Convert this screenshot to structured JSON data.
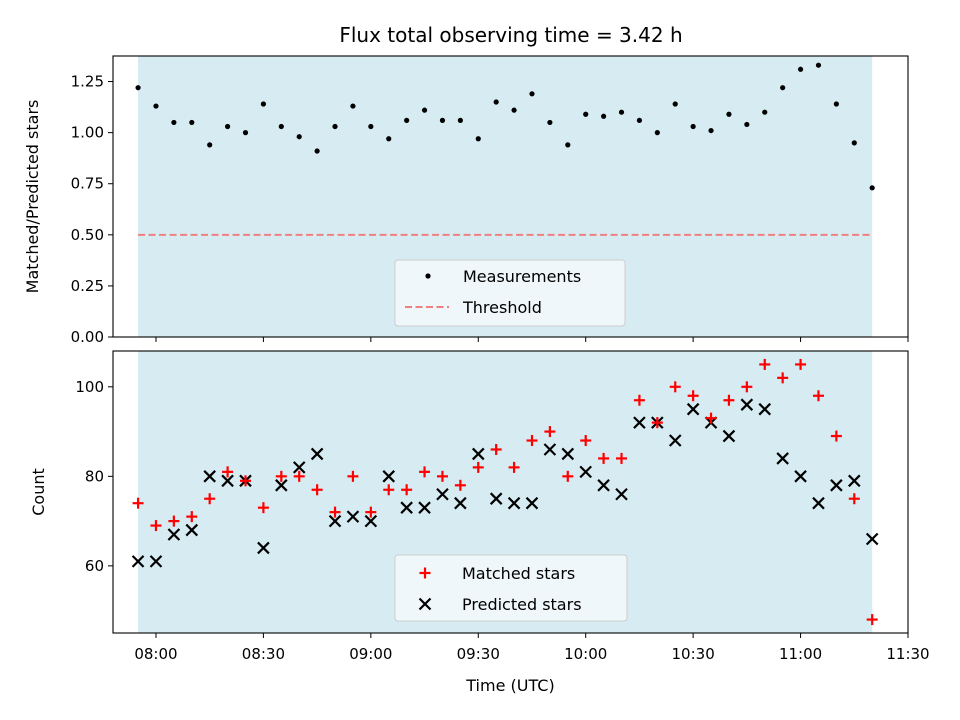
{
  "chart_data": [
    {
      "type": "scatter",
      "title": "Flux total observing time = 3.42 h",
      "xlabel": "",
      "ylabel": "Matched/Predicted stars",
      "ylim": [
        0,
        1.375
      ],
      "xlim": [
        "07:48",
        "11:30"
      ],
      "yticks": [
        "0.00",
        "0.25",
        "0.50",
        "0.75",
        "1.00",
        "1.25"
      ],
      "observing_window": [
        "07:55",
        "11:20"
      ],
      "observing_window_color": "#add8e6",
      "legend": {
        "placement": "lower center",
        "entries": [
          "Measurements",
          "Threshold"
        ]
      },
      "threshold": 0.5,
      "threshold_color": "#f08080",
      "marker_color": "#000000",
      "series": [
        {
          "name": "Measurements",
          "x": [
            "07:55",
            "08:00",
            "08:05",
            "08:10",
            "08:15",
            "08:20",
            "08:25",
            "08:30",
            "08:35",
            "08:40",
            "08:45",
            "08:50",
            "08:55",
            "09:00",
            "09:05",
            "09:10",
            "09:15",
            "09:20",
            "09:25",
            "09:30",
            "09:35",
            "09:40",
            "09:45",
            "09:50",
            "09:55",
            "10:00",
            "10:05",
            "10:10",
            "10:15",
            "10:20",
            "10:25",
            "10:30",
            "10:35",
            "10:40",
            "10:45",
            "10:50",
            "10:55",
            "11:00",
            "11:05",
            "11:10",
            "11:15",
            "11:20"
          ],
          "y": [
            1.22,
            1.13,
            1.05,
            1.05,
            0.94,
            1.03,
            1.0,
            1.14,
            1.03,
            0.98,
            0.91,
            1.03,
            1.13,
            1.03,
            0.97,
            1.06,
            1.11,
            1.06,
            1.06,
            0.97,
            1.15,
            1.11,
            1.19,
            1.05,
            0.94,
            1.09,
            1.08,
            1.1,
            1.06,
            1.0,
            1.14,
            1.03,
            1.01,
            1.09,
            1.04,
            1.1,
            1.22,
            1.31,
            1.33,
            1.14,
            0.95,
            0.73
          ]
        }
      ]
    },
    {
      "type": "scatter",
      "title": "",
      "xlabel": "Time (UTC)",
      "ylabel": "Count",
      "ylim": [
        45,
        108
      ],
      "xlim": [
        "07:48",
        "11:30"
      ],
      "xticks": [
        "08:00",
        "08:30",
        "09:00",
        "09:30",
        "10:00",
        "10:30",
        "11:00",
        "11:30"
      ],
      "yticks": [
        "60",
        "80",
        "100"
      ],
      "observing_window": [
        "07:55",
        "11:20"
      ],
      "legend": {
        "placement": "lower center",
        "entries": [
          "Matched stars",
          "Predicted stars"
        ]
      },
      "series": [
        {
          "name": "Matched stars",
          "marker": "+",
          "color": "#ff0000",
          "x": [
            "07:55",
            "08:00",
            "08:05",
            "08:10",
            "08:15",
            "08:20",
            "08:25",
            "08:30",
            "08:35",
            "08:40",
            "08:45",
            "08:50",
            "08:55",
            "09:00",
            "09:05",
            "09:10",
            "09:15",
            "09:20",
            "09:25",
            "09:30",
            "09:35",
            "09:40",
            "09:45",
            "09:50",
            "09:55",
            "10:00",
            "10:05",
            "10:10",
            "10:15",
            "10:20",
            "10:25",
            "10:30",
            "10:35",
            "10:40",
            "10:45",
            "10:50",
            "10:55",
            "11:00",
            "11:05",
            "11:10",
            "11:15",
            "11:20"
          ],
          "y": [
            74,
            69,
            70,
            71,
            75,
            81,
            79,
            73,
            80,
            80,
            77,
            72,
            80,
            72,
            77,
            77,
            81,
            80,
            78,
            82,
            86,
            82,
            88,
            90,
            80,
            88,
            84,
            84,
            97,
            92,
            100,
            98,
            93,
            97,
            100,
            105,
            102,
            105,
            98,
            89,
            75,
            48
          ]
        },
        {
          "name": "Predicted stars",
          "marker": "x",
          "color": "#000000",
          "x": [
            "07:55",
            "08:00",
            "08:05",
            "08:10",
            "08:15",
            "08:20",
            "08:25",
            "08:30",
            "08:35",
            "08:40",
            "08:45",
            "08:50",
            "08:55",
            "09:00",
            "09:05",
            "09:10",
            "09:15",
            "09:20",
            "09:25",
            "09:30",
            "09:35",
            "09:40",
            "09:45",
            "09:50",
            "09:55",
            "10:00",
            "10:05",
            "10:10",
            "10:15",
            "10:20",
            "10:25",
            "10:30",
            "10:35",
            "10:40",
            "10:45",
            "10:50",
            "10:55",
            "11:00",
            "11:05",
            "11:10",
            "11:15",
            "11:20"
          ],
          "y": [
            61,
            61,
            67,
            68,
            80,
            79,
            79,
            64,
            78,
            82,
            85,
            70,
            71,
            70,
            80,
            73,
            73,
            76,
            74,
            85,
            75,
            74,
            74,
            86,
            85,
            81,
            78,
            76,
            92,
            92,
            88,
            95,
            92,
            89,
            96,
            95,
            84,
            80,
            74,
            78,
            79,
            66
          ]
        }
      ]
    }
  ]
}
